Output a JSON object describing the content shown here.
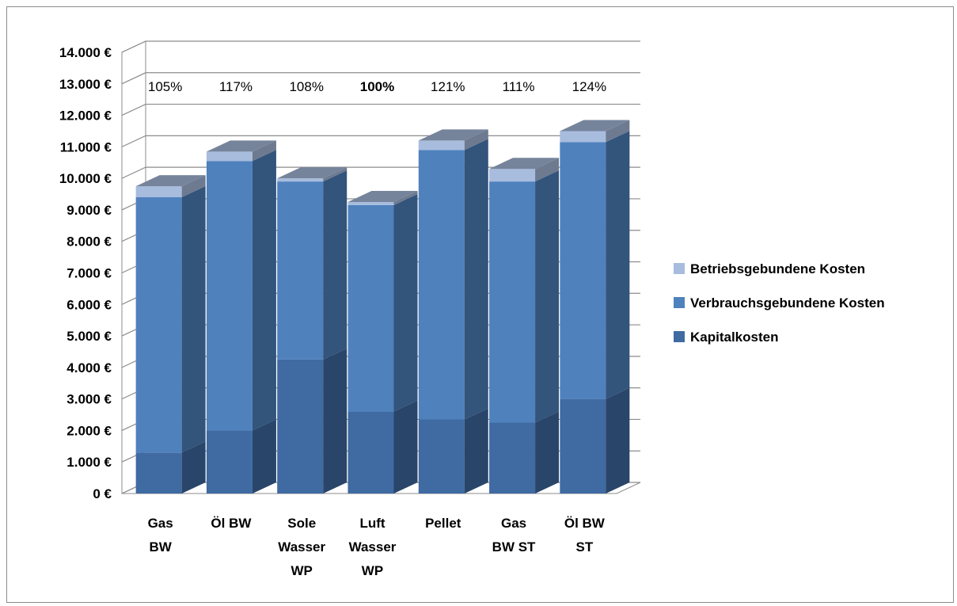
{
  "chart_data": {
    "type": "bar",
    "stacked": true,
    "three_d": true,
    "categories": [
      [
        "Gas",
        "BW"
      ],
      [
        "Öl BW"
      ],
      [
        "Sole",
        "Wasser",
        "WP"
      ],
      [
        "Luft",
        "Wasser",
        "WP"
      ],
      [
        "Pellet"
      ],
      [
        "Gas",
        "BW ST"
      ],
      [
        "Öl BW",
        "ST"
      ]
    ],
    "series": [
      {
        "name": "Kapitalkosten",
        "color": "#3f6aa2",
        "values": [
          1300,
          2000,
          4250,
          2600,
          2350,
          2250,
          3000
        ]
      },
      {
        "name": "Verbrauchsgebundene Kosten",
        "color": "#4f81bd",
        "values": [
          8100,
          8550,
          5650,
          6550,
          8550,
          7650,
          8150
        ]
      },
      {
        "name": "Betriebsgebundene Kosten",
        "color": "#a8bcde",
        "values": [
          350,
          300,
          100,
          100,
          300,
          400,
          350
        ]
      }
    ],
    "annotations": [
      "105%",
      "117%",
      "108%",
      "100%",
      "121%",
      "111%",
      "124%"
    ],
    "annotation_bold_index": 3,
    "yticks": [
      "0 €",
      "1.000 €",
      "2.000 €",
      "3.000 €",
      "4.000 €",
      "5.000 €",
      "6.000 €",
      "7.000 €",
      "8.000 €",
      "9.000 €",
      "10.000 €",
      "11.000 €",
      "12.000 €",
      "13.000 €",
      "14.000 €"
    ],
    "ylim": [
      0,
      14000
    ],
    "grid": true,
    "legend": "right",
    "legend_order": [
      "Betriebsgebundene Kosten",
      "Verbrauchsgebundene Kosten",
      "Kapitalkosten"
    ]
  }
}
